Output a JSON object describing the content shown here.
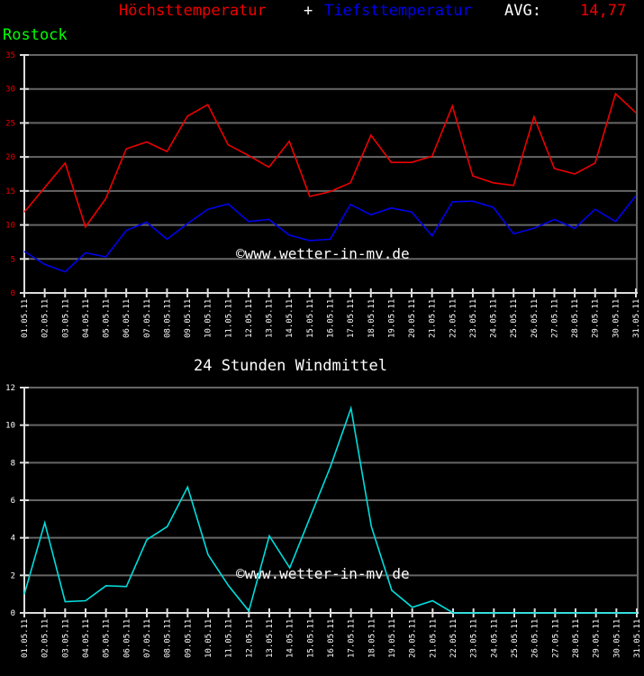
{
  "header": {
    "high_label": "Höchsttemperatur",
    "plus": "+",
    "low_label": "Tiefsttemperatur",
    "avg_label": "AVG:",
    "avg_value": "14,77",
    "city": "Rostock"
  },
  "colors": {
    "high": "#ee0000",
    "low": "#0000ee",
    "wind": "#00dddd",
    "grid": "#666666",
    "axis": "#dddddd",
    "city": "#00ff00",
    "temp_tick_labels": "#ee0000",
    "wind_tick_labels": "#ffffff"
  },
  "watermark": "©www.wetter-in-mv.de",
  "chart_data": [
    {
      "type": "line",
      "title": "Höchsttemperatur + Tiefsttemperatur AVG: 14,77",
      "subtitle": "Rostock",
      "xlabel": "",
      "ylabel": "",
      "ylim": [
        0,
        35
      ],
      "yticks": [
        0,
        5,
        10,
        15,
        20,
        25,
        30,
        35
      ],
      "grid": true,
      "categories": [
        "01.05.11",
        "02.05.11",
        "03.05.11",
        "04.05.11",
        "05.05.11",
        "06.05.11",
        "07.05.11",
        "08.05.11",
        "09.05.11",
        "10.05.11",
        "11.05.11",
        "12.05.11",
        "13.05.11",
        "14.05.11",
        "15.05.11",
        "16.05.11",
        "17.05.11",
        "18.05.11",
        "19.05.11",
        "20.05.11",
        "21.05.11",
        "22.05.11",
        "23.05.11",
        "24.05.11",
        "25.05.11",
        "26.05.11",
        "27.05.11",
        "28.05.11",
        "29.05.11",
        "30.05.11",
        "31.05.11"
      ],
      "series": [
        {
          "name": "Höchsttemperatur",
          "color": "#ee0000",
          "values": [
            11.9,
            15.5,
            19.1,
            9.7,
            13.9,
            21.2,
            22.2,
            20.8,
            26.0,
            27.7,
            21.8,
            20.2,
            18.5,
            22.3,
            14.2,
            14.9,
            16.2,
            23.2,
            19.2,
            19.2,
            20.1,
            27.5,
            17.2,
            16.2,
            15.8,
            25.9,
            18.3,
            17.5,
            19.1,
            29.3,
            26.5
          ]
        },
        {
          "name": "Tiefsttemperatur",
          "color": "#0000ee",
          "values": [
            6.1,
            4.2,
            3.1,
            5.9,
            5.3,
            9.2,
            10.4,
            7.9,
            10.2,
            12.3,
            13.1,
            10.5,
            10.8,
            8.5,
            7.7,
            7.9,
            13.0,
            11.5,
            12.5,
            11.9,
            8.4,
            13.4,
            13.5,
            12.6,
            8.7,
            9.5,
            10.8,
            9.5,
            12.3,
            10.5,
            14.3
          ]
        }
      ],
      "legend_position": "top"
    },
    {
      "type": "line",
      "title": "24 Stunden Windmittel",
      "xlabel": "",
      "ylabel": "",
      "ylim": [
        0,
        12
      ],
      "yticks": [
        0,
        2,
        4,
        6,
        8,
        10,
        12
      ],
      "grid": true,
      "categories": [
        "01.05.11",
        "02.05.11",
        "03.05.11",
        "04.05.11",
        "05.05.11",
        "06.05.11",
        "07.05.11",
        "08.05.11",
        "09.05.11",
        "10.05.11",
        "11.05.11",
        "12.05.11",
        "13.05.11",
        "14.05.11",
        "15.05.11",
        "16.05.11",
        "17.05.11",
        "18.05.11",
        "19.05.11",
        "20.05.11",
        "21.05.11",
        "22.05.11",
        "23.05.11",
        "24.05.11",
        "25.05.11",
        "26.05.11",
        "27.05.11",
        "28.05.11",
        "29.05.11",
        "30.05.11",
        "31.05.11"
      ],
      "series": [
        {
          "name": "Windmittel",
          "color": "#00dddd",
          "values": [
            1.0,
            4.8,
            0.6,
            0.65,
            1.45,
            1.4,
            3.9,
            4.6,
            6.7,
            3.1,
            1.45,
            0.1,
            4.1,
            2.4,
            5.1,
            7.8,
            10.9,
            4.6,
            1.2,
            0.3,
            0.65,
            0,
            0,
            0,
            0,
            0,
            0,
            0,
            0,
            0,
            0
          ]
        }
      ]
    }
  ]
}
